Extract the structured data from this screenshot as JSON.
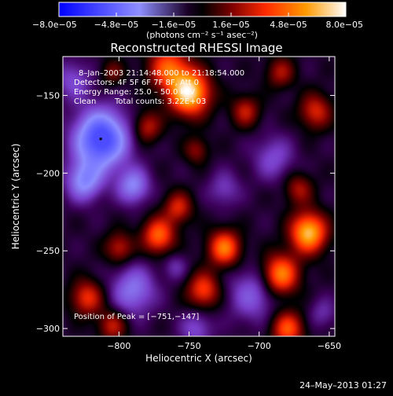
{
  "chart_data": {
    "type": "heatmap",
    "title": "Reconstructed RHESSI Image",
    "xlabel": "Heliocentric X (arcsec)",
    "ylabel": "Heliocentric Y (arcsec)",
    "xlim": [
      -840,
      -646
    ],
    "ylim": [
      -305,
      -125
    ],
    "x_ticks": [
      -800,
      -750,
      -700,
      -650
    ],
    "x_tick_labels": [
      "−800",
      "−750",
      "−700",
      "−650"
    ],
    "y_ticks": [
      -150,
      -200,
      -250,
      -300
    ],
    "y_tick_labels": [
      "−150",
      "−200",
      "−250",
      "−300"
    ],
    "colorbar": {
      "min": -8e-05,
      "max": 8e-05,
      "tick_labels": [
        "−8.0e−05",
        "−4.8e−05",
        "−1.6e−05",
        "1.6e−05",
        "4.8e−05",
        "8.0e−05"
      ],
      "tick_values": [
        -8e-05,
        -4.8e-05,
        -1.6e-05,
        1.6e-05,
        4.8e-05,
        8e-05
      ],
      "units_label": "(photons cm⁻² s⁻¹ asec⁻²)"
    },
    "annotations": {
      "time_range": "8–Jan–2003 21:14:48.000 to 21:18:54.000",
      "detectors": "Detectors: 4F 5F 6F 7F 8F, Att 0",
      "energy_range": "Energy Range: 25.0 – 50.0 keV",
      "clean_label": "Clean",
      "total_counts": "Total counts: 3.22E+03",
      "peak_position": "Position of Peak = [−751,−147]"
    },
    "peak": [
      -751,
      -147
    ],
    "features": [
      {
        "x": -750,
        "y": -148,
        "value": 1.0,
        "sigma": 10
      },
      {
        "x": -765,
        "y": -132,
        "value": 0.6,
        "sigma": 10
      },
      {
        "x": -813,
        "y": -178,
        "value": -1.0,
        "sigma": 13
      },
      {
        "x": -825,
        "y": -205,
        "value": -0.55,
        "sigma": 9
      },
      {
        "x": -790,
        "y": -208,
        "value": -0.5,
        "sigma": 8
      },
      {
        "x": -790,
        "y": -275,
        "value": -0.45,
        "sigma": 11
      },
      {
        "x": -690,
        "y": -190,
        "value": -0.3,
        "sigma": 10
      },
      {
        "x": -705,
        "y": -278,
        "value": -0.35,
        "sigma": 12
      },
      {
        "x": -665,
        "y": -238,
        "value": 0.9,
        "sigma": 9
      },
      {
        "x": -685,
        "y": -265,
        "value": 0.75,
        "sigma": 9
      },
      {
        "x": -680,
        "y": -300,
        "value": 0.6,
        "sigma": 8
      },
      {
        "x": -725,
        "y": -248,
        "value": 0.7,
        "sigma": 8
      },
      {
        "x": -740,
        "y": -275,
        "value": 0.55,
        "sigma": 8
      },
      {
        "x": -772,
        "y": -240,
        "value": 0.65,
        "sigma": 8
      },
      {
        "x": -758,
        "y": -222,
        "value": 0.45,
        "sigma": 7
      },
      {
        "x": -800,
        "y": -248,
        "value": 0.4,
        "sigma": 7
      },
      {
        "x": -823,
        "y": -280,
        "value": 0.5,
        "sigma": 8
      },
      {
        "x": -805,
        "y": -298,
        "value": 0.4,
        "sigma": 7
      },
      {
        "x": -685,
        "y": -135,
        "value": 0.35,
        "sigma": 7
      },
      {
        "x": -660,
        "y": -160,
        "value": 0.45,
        "sigma": 8
      },
      {
        "x": -710,
        "y": -160,
        "value": 0.4,
        "sigma": 7
      },
      {
        "x": -780,
        "y": -170,
        "value": 0.4,
        "sigma": 7
      },
      {
        "x": -745,
        "y": -185,
        "value": 0.3,
        "sigma": 6
      },
      {
        "x": -672,
        "y": -210,
        "value": 0.35,
        "sigma": 7
      },
      {
        "x": -833,
        "y": -140,
        "value": -0.3,
        "sigma": 9
      },
      {
        "x": -805,
        "y": -135,
        "value": 0.25,
        "sigma": 6
      },
      {
        "x": -745,
        "y": -300,
        "value": -0.3,
        "sigma": 8
      },
      {
        "x": -655,
        "y": -290,
        "value": -0.2,
        "sigma": 7
      },
      {
        "x": -725,
        "y": -210,
        "value": -0.25,
        "sigma": 8
      },
      {
        "x": -760,
        "y": -260,
        "value": -0.2,
        "sigma": 6
      }
    ]
  },
  "footer": {
    "timestamp": "24–May–2013 01:27"
  }
}
